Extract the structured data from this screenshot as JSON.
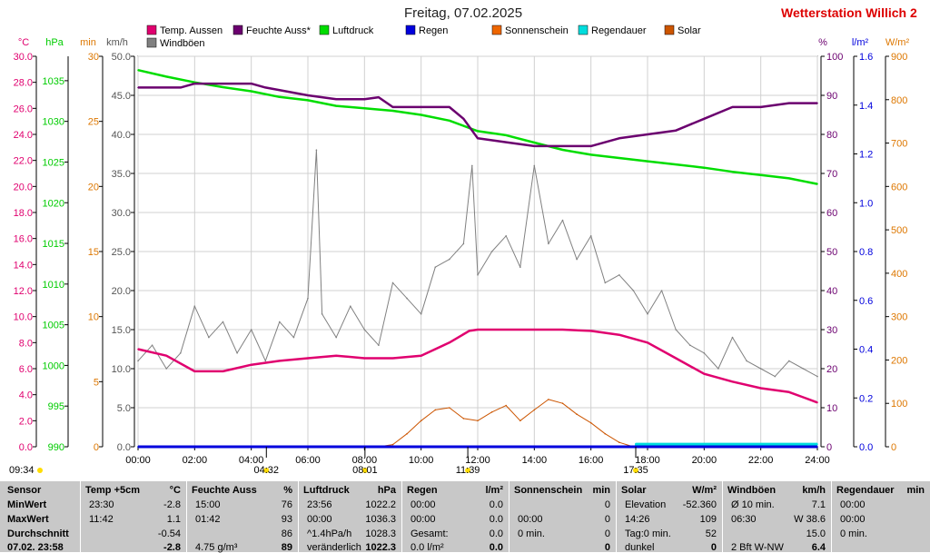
{
  "header": {
    "title": "Freitag, 07.02.2025",
    "brand": "Wetterstation Willich",
    "brand_suffix": "2"
  },
  "legend": [
    {
      "label": "Temp. Aussen",
      "color": "#e0006f"
    },
    {
      "label": "Feuchte Auss*",
      "color": "#6b006f"
    },
    {
      "label": "Luftdruck",
      "color": "#00dd00"
    },
    {
      "label": "Regen",
      "color": "#0000dd"
    },
    {
      "label": "Sonnenschein",
      "color": "#ee6600"
    },
    {
      "label": "Regendauer",
      "color": "#00dddd"
    },
    {
      "label": "Solar",
      "color": "#cc5500"
    },
    {
      "label": "Windböen",
      "color": "#808080"
    }
  ],
  "axes": {
    "temp": {
      "unit": "°C",
      "color": "#e0006f",
      "ticks": [
        "30.0",
        "28.0",
        "26.0",
        "24.0",
        "22.0",
        "20.0",
        "18.0",
        "16.0",
        "14.0",
        "12.0",
        "10.0",
        "8.0",
        "6.0",
        "4.0",
        "2.0",
        "0.0"
      ]
    },
    "pressure": {
      "unit": "hPa",
      "color": "#00cc00",
      "ticks": [
        "1035",
        "1030",
        "1025",
        "1020",
        "1015",
        "1010",
        "1005",
        "1000",
        "995",
        "990"
      ]
    },
    "minutes": {
      "unit": "min",
      "color": "#dd7700",
      "ticks": [
        "30",
        "25",
        "20",
        "15",
        "10",
        "5",
        "0"
      ]
    },
    "wind": {
      "unit": "km/h",
      "color": "#555555",
      "ticks": [
        "50.0",
        "45.0",
        "40.0",
        "35.0",
        "30.0",
        "25.0",
        "20.0",
        "15.0",
        "10.0",
        "5.0",
        "0.0"
      ]
    },
    "humidity": {
      "unit": "%",
      "color": "#6b006f",
      "ticks": [
        "100",
        "90",
        "80",
        "70",
        "60",
        "50",
        "40",
        "30",
        "20",
        "10",
        "0"
      ]
    },
    "rain": {
      "unit": "l/m²",
      "color": "#0000dd",
      "ticks": [
        "1.6",
        "1.4",
        "1.2",
        "1.0",
        "0.8",
        "0.6",
        "0.4",
        "0.2",
        "0.0"
      ]
    },
    "solar": {
      "unit": "W/m²",
      "color": "#dd7700",
      "ticks": [
        "900",
        "800",
        "700",
        "600",
        "500",
        "400",
        "300",
        "200",
        "100",
        "0"
      ]
    },
    "time": {
      "ticks": [
        "00:00",
        "02:00",
        "04:00",
        "06:00",
        "08:00",
        "10:00",
        "12:00",
        "14:00",
        "16:00",
        "18:00",
        "20:00",
        "22:00",
        "24:00"
      ]
    }
  },
  "markers": {
    "sunrise_clock": "09:34",
    "moonrise": "04:32",
    "sunrise": "08:01",
    "noon": "11:39",
    "sunset": "17:35"
  },
  "chart_data": {
    "type": "line",
    "x_unit": "hours",
    "xlim": [
      0,
      24
    ],
    "series": [
      {
        "name": "Temp. Aussen",
        "unit": "°C",
        "ylim": [
          0,
          30
        ],
        "x": [
          0,
          1,
          2,
          3,
          4,
          5,
          6,
          7,
          8,
          9,
          10,
          11,
          11.7,
          12,
          13,
          14,
          15,
          16,
          17,
          18,
          19,
          20,
          21,
          22,
          23,
          23.5,
          24
        ],
        "y": [
          7.5,
          7.0,
          5.8,
          5.8,
          6.3,
          6.6,
          6.8,
          7.0,
          6.8,
          6.8,
          7.0,
          8.0,
          8.9,
          9.0,
          9.0,
          9.0,
          9.0,
          8.9,
          8.6,
          8.0,
          6.8,
          5.6,
          5.0,
          4.5,
          4.2,
          3.8,
          3.4
        ]
      },
      {
        "name": "Feuchte Auss*",
        "unit": "%",
        "ylim": [
          0,
          100
        ],
        "x": [
          0,
          1.5,
          2,
          3,
          4,
          4.5,
          6,
          7,
          8,
          8.5,
          9,
          10,
          11,
          11.5,
          12,
          13,
          14,
          15,
          16,
          17,
          18,
          19,
          20,
          21,
          22,
          23,
          24
        ],
        "y": [
          92,
          92,
          93,
          93,
          93,
          92,
          90,
          89,
          89,
          89.5,
          87,
          87,
          87,
          84,
          79,
          78,
          77,
          77,
          77,
          79,
          80,
          81,
          84,
          87,
          87,
          88,
          88
        ]
      },
      {
        "name": "Luftdruck",
        "unit": "hPa",
        "ylim": [
          990,
          1038
        ],
        "x": [
          0,
          1,
          2,
          3,
          4,
          5,
          6,
          7,
          8,
          9,
          10,
          11,
          12,
          13,
          14,
          15,
          16,
          17,
          18,
          19,
          20,
          21,
          22,
          23,
          24
        ],
        "y": [
          1036.3,
          1035.5,
          1034.8,
          1034.2,
          1033.7,
          1033.0,
          1032.6,
          1031.9,
          1031.6,
          1031.3,
          1030.8,
          1030.1,
          1028.8,
          1028.3,
          1027.4,
          1026.5,
          1025.9,
          1025.5,
          1025.1,
          1024.7,
          1024.3,
          1023.8,
          1023.4,
          1023.0,
          1022.3
        ]
      },
      {
        "name": "Windböen",
        "unit": "km/h",
        "ylim": [
          0,
          50
        ],
        "x": [
          0,
          0.5,
          1,
          1.5,
          2,
          2.5,
          3,
          3.5,
          4,
          4.5,
          5,
          5.5,
          6,
          6.3,
          6.5,
          7,
          7.5,
          8,
          8.5,
          9,
          9.5,
          10,
          10.5,
          11,
          11.5,
          11.8,
          12,
          12.5,
          13,
          13.5,
          14,
          14.5,
          15,
          15.5,
          16,
          16.5,
          17,
          17.5,
          18,
          18.5,
          19,
          19.5,
          20,
          20.5,
          21,
          21.5,
          22,
          22.5,
          23,
          23.5,
          24
        ],
        "y": [
          11,
          13,
          10,
          12,
          18,
          14,
          16,
          12,
          15,
          11,
          16,
          14,
          19,
          38,
          17,
          14,
          18,
          15,
          13,
          21,
          19,
          17,
          23,
          24,
          26,
          36,
          22,
          25,
          27,
          23,
          36,
          26,
          29,
          24,
          27,
          21,
          22,
          20,
          17,
          20,
          15,
          13,
          12,
          10,
          14,
          11,
          10,
          9,
          11,
          10,
          9
        ]
      },
      {
        "name": "Solar",
        "unit": "W/m²",
        "ylim": [
          0,
          900
        ],
        "x": [
          0,
          7.5,
          8.5,
          9,
          9.5,
          10,
          10.5,
          11,
          11.5,
          12,
          12.5,
          13,
          13.5,
          14,
          14.5,
          15,
          15.5,
          16,
          16.5,
          17,
          17.5,
          24
        ],
        "y": [
          0,
          0,
          0,
          5,
          30,
          60,
          85,
          90,
          65,
          60,
          80,
          95,
          60,
          85,
          109,
          100,
          75,
          55,
          30,
          10,
          0,
          0
        ]
      },
      {
        "name": "Regendauer",
        "unit": "min",
        "ylim": [
          0,
          30
        ],
        "x": [
          0,
          17.6,
          17.6,
          24
        ],
        "y": [
          0,
          0,
          0.2,
          0.2
        ]
      },
      {
        "name": "Regen",
        "unit": "l/m²",
        "ylim": [
          0,
          1.6
        ],
        "x": [
          0,
          24
        ],
        "y": [
          0,
          0
        ]
      }
    ]
  },
  "stats": {
    "row_labels": [
      "Sensor",
      "MinWert",
      "MaxWert",
      "Durchschnitt",
      "07.02. 23:58"
    ],
    "columns": [
      {
        "title": "Temp +5cm",
        "unit": "°C",
        "rows": [
          [
            "23:30",
            "-2.8"
          ],
          [
            "11:42",
            "1.1"
          ],
          [
            "",
            "-0.54"
          ],
          [
            "",
            "-2.8"
          ]
        ]
      },
      {
        "title": "Feuchte Auss",
        "unit": "%",
        "rows": [
          [
            "15:00",
            "76"
          ],
          [
            "01:42",
            "93"
          ],
          [
            "",
            "86"
          ],
          [
            "4.75 g/m³",
            "89"
          ]
        ]
      },
      {
        "title": "Luftdruck",
        "unit": "hPa",
        "rows": [
          [
            "23:56",
            "1022.2"
          ],
          [
            "00:00",
            "1036.3"
          ],
          [
            "^1.4hPa/h",
            "1028.3"
          ],
          [
            "veränderlich",
            "1022.3"
          ]
        ]
      },
      {
        "title": "Regen",
        "unit": "l/m²",
        "rows": [
          [
            "00:00",
            "0.0"
          ],
          [
            "00:00",
            "0.0"
          ],
          [
            "Gesamt:",
            "0.0"
          ],
          [
            "0.0 l/m²",
            "0.0"
          ]
        ]
      },
      {
        "title": "Sonnenschein",
        "unit": "min",
        "rows": [
          [
            "",
            "0"
          ],
          [
            "00:00",
            "0"
          ],
          [
            "0 min.",
            "0"
          ],
          [
            "",
            "0"
          ]
        ]
      },
      {
        "title": "Solar",
        "unit": "W/m²",
        "rows": [
          [
            "Elevation",
            "-52.360"
          ],
          [
            "14:26",
            "109"
          ],
          [
            "Tag:0 min.",
            "52"
          ],
          [
            "dunkel",
            "0"
          ]
        ]
      },
      {
        "title": "Windböen",
        "unit": "km/h",
        "rows": [
          [
            "Ø 10 min.",
            "7.1"
          ],
          [
            "06:30",
            "W 38.6"
          ],
          [
            "",
            "15.0"
          ],
          [
            "2 Bft W-NW",
            "6.4"
          ]
        ]
      },
      {
        "title": "Regendauer",
        "unit": "min",
        "rows": [
          [
            "00:00",
            ""
          ],
          [
            "00:00",
            ""
          ],
          [
            "0 min.",
            ""
          ],
          [
            "",
            ""
          ]
        ]
      }
    ]
  }
}
